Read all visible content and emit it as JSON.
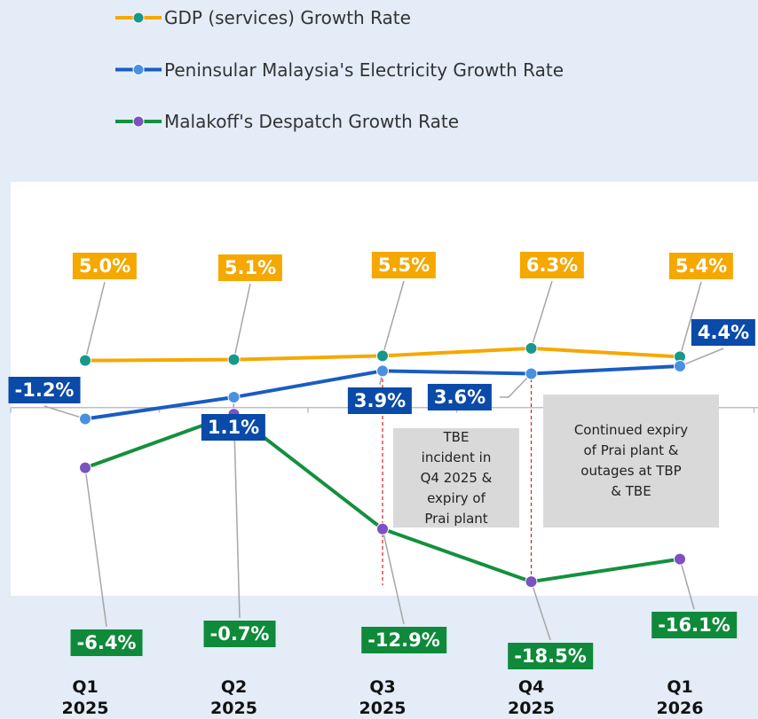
{
  "chart_data": {
    "type": "line",
    "categories": [
      "Q1\n2025",
      "Q2\n2025",
      "Q3\n2025",
      "Q4\n2025",
      "Q1\n2026"
    ],
    "series": [
      {
        "name": "GDP (services) Growth Rate",
        "color": "#f5a800",
        "marker_color": "#17988a",
        "values": [
          5.0,
          5.1,
          5.5,
          6.3,
          5.4
        ],
        "value_labels": [
          "5.0%",
          "5.1%",
          "5.5%",
          "6.3%",
          "5.4%"
        ]
      },
      {
        "name": "Peninsular Malaysia's Electricity Growth Rate",
        "color": "#1a5cc0",
        "marker_color": "#4a90e2",
        "label_color": "#0a4aa8",
        "values": [
          -1.2,
          1.1,
          3.9,
          3.6,
          4.4
        ],
        "value_labels": [
          "-1.2%",
          "1.1%",
          "3.9%",
          "3.6%",
          "4.4%"
        ]
      },
      {
        "name": "Malakoff's Despatch Growth Rate",
        "color": "#14903e",
        "marker_color": "#7b52c0",
        "label_color": "#0e8a3a",
        "values": [
          -6.4,
          -0.7,
          -12.9,
          -18.5,
          -16.1
        ],
        "value_labels": [
          "-6.4%",
          "-0.7%",
          "-12.9%",
          "-18.5%",
          "-16.1%"
        ]
      }
    ],
    "ylim": [
      -20,
      24
    ],
    "annotations": [
      "TBE\nincident in\nQ4 2025 &\nexpiry of\nPrai plant",
      "Continued expiry\nof Prai plant &\noutages at TBP\n& TBE"
    ]
  }
}
